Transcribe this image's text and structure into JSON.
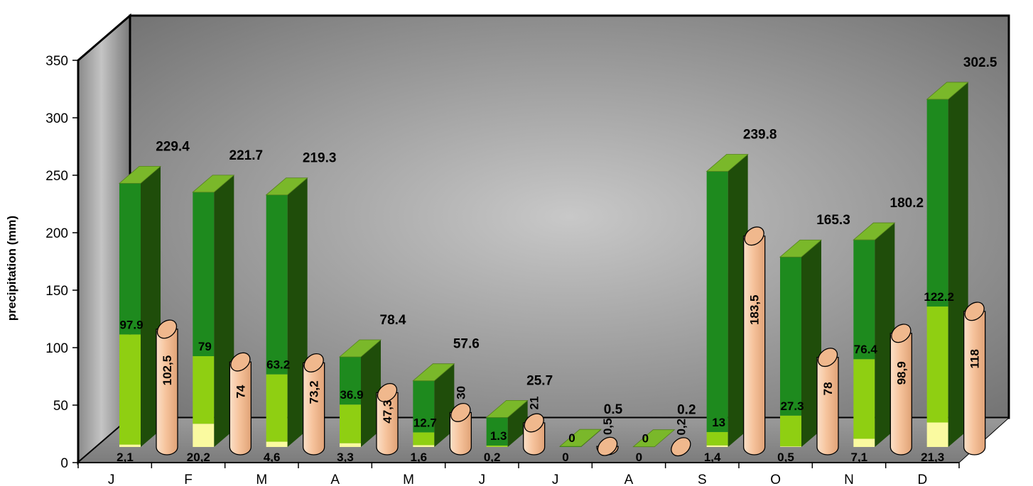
{
  "chart_data": {
    "type": "bar",
    "ylabel": "precipitation (mm)",
    "ylim": [
      0,
      350
    ],
    "yticks": [
      0,
      50,
      100,
      150,
      200,
      250,
      300,
      350
    ],
    "grid": false,
    "categories": [
      "J",
      "F",
      "M",
      "A",
      "M",
      "J",
      "J",
      "A",
      "S",
      "O",
      "N",
      "D"
    ],
    "stack_segments": [
      {
        "values": [
          2.1,
          20.2,
          4.6,
          3.3,
          1.6,
          0.2,
          0,
          0,
          1.4,
          0.5,
          7.1,
          21.3
        ],
        "labels": [
          "2,1",
          "20,2",
          "4,6",
          "3,3",
          "1,6",
          "0,2",
          "0",
          "0",
          "1,4",
          "0,5",
          "7,1",
          "21,3"
        ]
      },
      {
        "values": [
          97.9,
          79,
          63.2,
          36.9,
          12.7,
          1.3,
          0,
          0,
          13,
          27.3,
          76.4,
          122.2
        ],
        "labels": [
          "97.9",
          "79",
          "63.2",
          "36.9",
          "12.7",
          "1.3",
          "0",
          "0",
          "13",
          "27.3",
          "76.4",
          "122.2"
        ]
      },
      {
        "values": [
          229.4,
          221.7,
          219.3,
          78.4,
          57.6,
          25.7,
          0.5,
          0.2,
          239.8,
          165.3,
          180.2,
          302.5
        ],
        "labels": [
          "229.4",
          "221.7",
          "219.3",
          "78.4",
          "57.6",
          "25.7",
          "0.5",
          "0.2",
          "239.8",
          "165.3",
          "180.2",
          "302.5"
        ]
      }
    ],
    "cylinder_series": {
      "values": [
        102.5,
        74,
        73.2,
        47.3,
        30,
        21,
        0.5,
        0.2,
        183.5,
        78,
        98.9,
        118
      ],
      "labels": [
        "102,5",
        "74",
        "73,2",
        "47,3",
        "30",
        "21",
        "0,5",
        "0,2",
        "183,5",
        "78",
        "98,9",
        "118"
      ]
    },
    "colors": {
      "bar_top": "#1e8a1e",
      "bar_mid": "#8fcf12",
      "bar_bottom": "#fafaa0",
      "bar_side": "#1f4d0a",
      "bar_cap": "#7ab82a",
      "cylinder_fill": "#f6c39c",
      "cylinder_cap": "#f0b88d",
      "wall_center": "#c8c8c8",
      "wall_edge": "#6e6e6e",
      "floor": "#8c8c8c",
      "left_wall": "#9a9a9a"
    }
  }
}
